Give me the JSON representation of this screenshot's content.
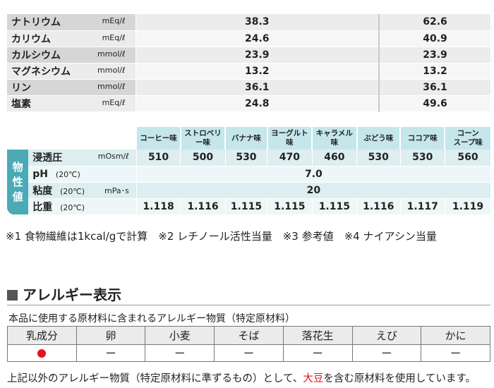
{
  "electrolytes": [
    {
      "name": "ナトリウム",
      "unit": "mEq/ℓ",
      "v1": "38.3",
      "v2": "62.6"
    },
    {
      "name": "カリウム",
      "unit": "mEq/ℓ",
      "v1": "24.6",
      "v2": "40.9"
    },
    {
      "name": "カルシウム",
      "unit": "mmol/ℓ",
      "v1": "23.9",
      "v2": "23.9"
    },
    {
      "name": "マグネシウム",
      "unit": "mmol/ℓ",
      "v1": "13.2",
      "v2": "13.2"
    },
    {
      "name": "リン",
      "unit": "mmol/ℓ",
      "v1": "36.1",
      "v2": "36.1"
    },
    {
      "name": "塩素",
      "unit": "mEq/ℓ",
      "v1": "24.8",
      "v2": "49.6"
    }
  ],
  "physical": {
    "side_label": [
      "物",
      "性",
      "値"
    ],
    "flavors": [
      "コーヒー味",
      "ストロベリー味",
      "バナナ味",
      "ヨーグルト味",
      "キャラメル味",
      "ぶどう味",
      "ココア味",
      "コーンスープ味"
    ],
    "flavor_last_lines": [
      "コーン",
      "スープ味"
    ],
    "osmotic": {
      "name": "浸透圧",
      "unit": "mOsm/ℓ",
      "values": [
        "510",
        "500",
        "530",
        "470",
        "460",
        "530",
        "530",
        "560"
      ]
    },
    "ph": {
      "name": "pH",
      "cond": "(20℃)",
      "value": "7.0"
    },
    "viscosity": {
      "name": "粘度",
      "cond": "(20℃)",
      "unit": "mPa･s",
      "value": "20"
    },
    "gravity": {
      "name": "比重",
      "cond": "(20℃)",
      "values": [
        "1.118",
        "1.116",
        "1.115",
        "1.115",
        "1.115",
        "1.116",
        "1.117",
        "1.119"
      ]
    }
  },
  "notes": "※1 食物繊維は1kcal/gで計算　※2 レチノール活性当量　※3 参考値　※4 ナイアシン当量",
  "allergy": {
    "title": "アレルギー表示",
    "subtitle": "本品に使用する原材料に含まれるアレルギー物質（特定原材料）",
    "headers": [
      "乳成分",
      "卵",
      "小麦",
      "そば",
      "落花生",
      "えび",
      "かに"
    ],
    "marks": [
      "●",
      "ー",
      "ー",
      "ー",
      "ー",
      "ー",
      "ー"
    ],
    "footnote_pre": "上記以外のアレルギー物質（特定原材料に準ずるもの）として、",
    "footnote_highlight": "大豆",
    "footnote_post": "を含む原材料を使用しています。",
    "highlight_color": "#e8101a"
  }
}
